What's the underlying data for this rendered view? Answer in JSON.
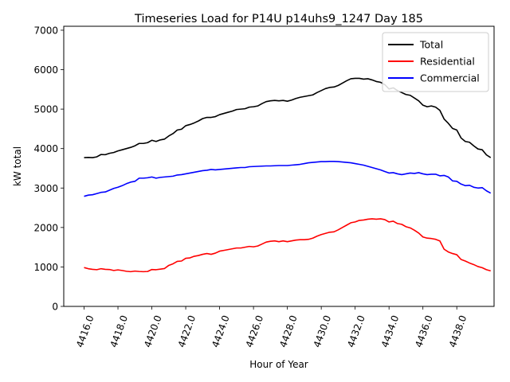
{
  "chart_data": {
    "type": "line",
    "title": "Timeseries Load for P14U p14uhs9_1247  Day 185",
    "xlabel": "Hour of Year",
    "ylabel": "kW total",
    "xlim": [
      4414.8,
      4440.2
    ],
    "ylim": [
      0,
      7100
    ],
    "x_ticks": [
      4416,
      4418,
      4420,
      4422,
      4424,
      4426,
      4428,
      4430,
      4432,
      4434,
      4436,
      4438
    ],
    "x_tick_labels": [
      "4416.0",
      "4418.0",
      "4420.0",
      "4422.0",
      "4424.0",
      "4426.0",
      "4428.0",
      "4430.0",
      "4432.0",
      "4434.0",
      "4436.0",
      "4438.0"
    ],
    "y_ticks": [
      0,
      1000,
      2000,
      3000,
      4000,
      5000,
      6000,
      7000
    ],
    "y_tick_labels": [
      "0",
      "1000",
      "2000",
      "3000",
      "4000",
      "5000",
      "6000",
      "7000"
    ],
    "legend_position": "top-right",
    "x_start": 4416,
    "x_step": 0.25,
    "series": [
      {
        "name": "Total",
        "color": "#000000",
        "values": [
          3770,
          3775,
          3770,
          3790,
          3850,
          3845,
          3880,
          3900,
          3940,
          3970,
          4000,
          4030,
          4070,
          4130,
          4130,
          4150,
          4210,
          4180,
          4220,
          4240,
          4320,
          4380,
          4470,
          4490,
          4580,
          4610,
          4650,
          4700,
          4760,
          4790,
          4790,
          4810,
          4860,
          4890,
          4920,
          4950,
          4990,
          5000,
          5010,
          5050,
          5060,
          5080,
          5140,
          5190,
          5210,
          5220,
          5210,
          5220,
          5200,
          5230,
          5270,
          5300,
          5320,
          5340,
          5360,
          5420,
          5470,
          5520,
          5550,
          5560,
          5600,
          5660,
          5720,
          5770,
          5780,
          5780,
          5760,
          5770,
          5740,
          5700,
          5680,
          5620,
          5510,
          5540,
          5470,
          5420,
          5370,
          5350,
          5280,
          5210,
          5100,
          5060,
          5080,
          5050,
          4970,
          4750,
          4640,
          4510,
          4470,
          4270,
          4180,
          4160,
          4070,
          3990,
          3970,
          3840,
          3770
        ]
      },
      {
        "name": "Residential",
        "color": "#ff0000",
        "values": [
          985,
          955,
          940,
          930,
          955,
          940,
          935,
          910,
          925,
          910,
          890,
          880,
          895,
          885,
          880,
          885,
          935,
          930,
          945,
          960,
          1040,
          1080,
          1140,
          1150,
          1220,
          1230,
          1270,
          1290,
          1320,
          1340,
          1320,
          1350,
          1400,
          1420,
          1440,
          1460,
          1480,
          1480,
          1500,
          1520,
          1510,
          1530,
          1580,
          1630,
          1650,
          1660,
          1640,
          1660,
          1640,
          1660,
          1680,
          1690,
          1690,
          1700,
          1730,
          1780,
          1820,
          1850,
          1880,
          1890,
          1940,
          2000,
          2060,
          2120,
          2140,
          2180,
          2190,
          2210,
          2220,
          2210,
          2220,
          2200,
          2140,
          2160,
          2100,
          2080,
          2020,
          1990,
          1930,
          1860,
          1760,
          1730,
          1720,
          1700,
          1660,
          1450,
          1380,
          1340,
          1310,
          1190,
          1150,
          1100,
          1060,
          1010,
          980,
          930,
          900
        ]
      },
      {
        "name": "Commercial",
        "color": "#0000ff",
        "values": [
          2790,
          2820,
          2830,
          2860,
          2890,
          2900,
          2945,
          2990,
          3020,
          3060,
          3110,
          3150,
          3170,
          3250,
          3250,
          3260,
          3280,
          3250,
          3270,
          3280,
          3290,
          3300,
          3330,
          3340,
          3360,
          3380,
          3400,
          3420,
          3440,
          3450,
          3470,
          3460,
          3470,
          3480,
          3490,
          3500,
          3510,
          3520,
          3520,
          3540,
          3545,
          3550,
          3555,
          3560,
          3560,
          3565,
          3570,
          3570,
          3570,
          3580,
          3590,
          3600,
          3620,
          3640,
          3650,
          3660,
          3670,
          3670,
          3675,
          3675,
          3670,
          3660,
          3650,
          3640,
          3620,
          3600,
          3580,
          3550,
          3520,
          3490,
          3460,
          3420,
          3380,
          3390,
          3360,
          3340,
          3360,
          3380,
          3370,
          3390,
          3360,
          3340,
          3350,
          3350,
          3310,
          3320,
          3280,
          3180,
          3170,
          3100,
          3060,
          3070,
          3020,
          3000,
          3010,
          2930,
          2870
        ]
      }
    ]
  }
}
